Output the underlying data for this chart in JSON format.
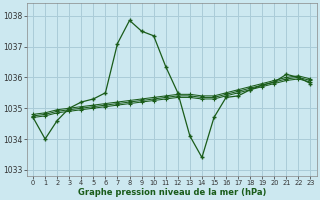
{
  "title": "Graphe pression niveau de la mer (hPa)",
  "bg_color": "#cce8f0",
  "grid_color": "#aaccd8",
  "line_color": "#1a5c1a",
  "xlim": [
    -0.5,
    23.5
  ],
  "ylim": [
    1032.8,
    1038.4
  ],
  "yticks": [
    1033,
    1034,
    1035,
    1036,
    1037,
    1038
  ],
  "xticks": [
    0,
    1,
    2,
    3,
    4,
    5,
    6,
    7,
    8,
    9,
    10,
    11,
    12,
    13,
    14,
    15,
    16,
    17,
    18,
    19,
    20,
    21,
    22,
    23
  ],
  "series": [
    [
      1034.7,
      1034.0,
      1034.6,
      1035.0,
      1035.2,
      1035.3,
      1035.5,
      1037.1,
      1037.85,
      1037.5,
      1037.35,
      1036.35,
      1035.5,
      1034.1,
      1033.4,
      1034.7,
      1035.35,
      1035.4,
      1035.6,
      1035.75,
      1035.85,
      1036.1,
      1036.0,
      1035.8
    ],
    [
      1034.8,
      1034.85,
      1034.95,
      1035.0,
      1035.05,
      1035.1,
      1035.15,
      1035.2,
      1035.25,
      1035.3,
      1035.35,
      1035.4,
      1035.45,
      1035.45,
      1035.4,
      1035.4,
      1035.5,
      1035.6,
      1035.7,
      1035.8,
      1035.9,
      1036.0,
      1036.05,
      1035.95
    ],
    [
      1034.75,
      1034.8,
      1034.9,
      1034.95,
      1035.0,
      1035.05,
      1035.1,
      1035.15,
      1035.2,
      1035.25,
      1035.3,
      1035.35,
      1035.4,
      1035.4,
      1035.35,
      1035.35,
      1035.45,
      1035.55,
      1035.65,
      1035.75,
      1035.85,
      1035.95,
      1036.0,
      1035.9
    ],
    [
      1034.7,
      1034.75,
      1034.85,
      1034.9,
      1034.95,
      1035.0,
      1035.05,
      1035.1,
      1035.15,
      1035.2,
      1035.25,
      1035.3,
      1035.35,
      1035.35,
      1035.3,
      1035.3,
      1035.4,
      1035.5,
      1035.6,
      1035.7,
      1035.8,
      1035.9,
      1035.95,
      1035.85
    ]
  ]
}
